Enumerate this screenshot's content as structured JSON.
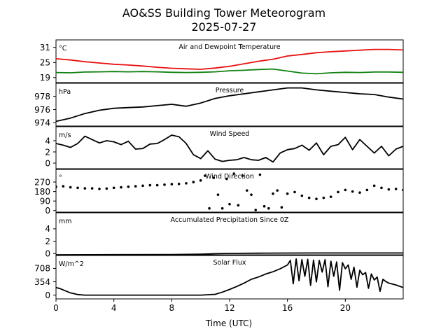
{
  "figure": {
    "title_line1": "AO&SS Building Tower Meteorogram",
    "title_line2": "2025-07-27",
    "xlabel": "Time (UTC)",
    "xlim": [
      0,
      24
    ],
    "xticks": [
      0,
      4,
      8,
      12,
      16,
      20
    ],
    "xtick_labels": [
      "0",
      "4",
      "8",
      "12",
      "16",
      "20"
    ]
  },
  "chart_data": [
    {
      "type": "line",
      "title": "Air and Dewpoint Temperature",
      "unit": "°C",
      "ylim": [
        17,
        34
      ],
      "yticks": [
        19,
        25,
        31
      ],
      "ytick_labels": [
        "19",
        "25",
        "31"
      ],
      "series": [
        {
          "name": "Air Temperature",
          "color": "#e81010",
          "x": [
            0,
            1,
            2,
            3,
            4,
            5,
            6,
            7,
            8,
            9,
            10,
            11,
            12,
            13,
            14,
            15,
            16,
            17,
            18,
            19,
            20,
            21,
            22,
            23,
            24
          ],
          "y": [
            26.5,
            26.0,
            25.3,
            24.8,
            24.3,
            24.0,
            23.6,
            23.1,
            22.7,
            22.5,
            22.3,
            22.8,
            23.5,
            24.5,
            25.5,
            26.3,
            27.6,
            28.2,
            28.9,
            29.3,
            29.6,
            29.9,
            30.2,
            30.2,
            30.0
          ]
        },
        {
          "name": "Dewpoint",
          "color": "#108010",
          "x": [
            0,
            1,
            2,
            3,
            4,
            5,
            6,
            7,
            8,
            9,
            10,
            11,
            12,
            13,
            14,
            15,
            16,
            17,
            18,
            19,
            20,
            21,
            22,
            23,
            24
          ],
          "y": [
            21.0,
            20.9,
            21.2,
            21.3,
            21.4,
            21.3,
            21.4,
            21.3,
            21.1,
            21.0,
            21.1,
            21.3,
            21.7,
            21.9,
            22.2,
            22.4,
            21.6,
            20.8,
            20.5,
            20.9,
            21.1,
            21.0,
            21.2,
            21.2,
            21.1
          ]
        }
      ]
    },
    {
      "type": "line",
      "title": "Pressure",
      "unit": "hPa",
      "ylim": [
        973.5,
        980.0
      ],
      "yticks": [
        974,
        976,
        978
      ],
      "ytick_labels": [
        "974",
        "976",
        "978"
      ],
      "series": [
        {
          "name": "Pressure",
          "color": "#000000",
          "x": [
            0,
            1,
            2,
            3,
            4,
            5,
            6,
            7,
            8,
            9,
            10,
            11,
            12,
            13,
            14,
            15,
            16,
            17,
            18,
            19,
            20,
            21,
            22,
            23,
            24
          ],
          "y": [
            974.2,
            974.7,
            975.4,
            975.9,
            976.2,
            976.3,
            976.4,
            976.6,
            976.8,
            976.5,
            977.0,
            977.7,
            978.1,
            978.4,
            978.7,
            979.0,
            979.3,
            979.3,
            979.0,
            978.8,
            978.6,
            978.4,
            978.3,
            977.9,
            977.6
          ]
        }
      ]
    },
    {
      "type": "line",
      "title": "Wind Speed",
      "unit": "m/s",
      "ylim": [
        -1,
        6.5
      ],
      "yticks": [
        0,
        2,
        4
      ],
      "ytick_labels": [
        "0",
        "2",
        "4"
      ],
      "series": [
        {
          "name": "Wind Speed",
          "color": "#000000",
          "x": [
            0,
            0.5,
            1,
            1.5,
            2,
            2.5,
            3,
            3.5,
            4,
            4.5,
            5,
            5.5,
            6,
            6.5,
            7,
            7.5,
            8,
            8.5,
            9,
            9.5,
            10,
            10.5,
            11,
            11.5,
            12,
            12.5,
            13,
            13.5,
            14,
            14.5,
            15,
            15.5,
            16,
            16.5,
            17,
            17.5,
            18,
            18.5,
            19,
            19.5,
            20,
            20.5,
            21,
            21.5,
            22,
            22.5,
            23,
            23.5,
            24
          ],
          "y": [
            3.5,
            3.2,
            2.8,
            3.5,
            4.8,
            4.2,
            3.6,
            4.0,
            3.8,
            3.3,
            3.9,
            2.5,
            2.6,
            3.4,
            3.5,
            4.2,
            5.0,
            4.7,
            3.5,
            1.5,
            0.8,
            2.2,
            0.7,
            0.3,
            0.5,
            0.6,
            1.0,
            0.6,
            0.5,
            1.0,
            0.2,
            1.8,
            2.4,
            2.6,
            3.2,
            2.3,
            3.6,
            1.5,
            3.0,
            3.3,
            4.6,
            2.4,
            4.2,
            3.0,
            1.8,
            3.0,
            1.3,
            2.5,
            3.0
          ]
        }
      ]
    },
    {
      "type": "scatter",
      "title": "Wind Direction",
      "unit": "°",
      "ylim": [
        -15,
        390
      ],
      "yticks": [
        0,
        90,
        180,
        270
      ],
      "ytick_labels": [
        "0",
        "90",
        "180",
        "270"
      ],
      "series": [
        {
          "name": "Wind Direction",
          "color": "#000000",
          "x": [
            0,
            0.5,
            1,
            1.5,
            2,
            2.5,
            3,
            3.5,
            4,
            4.5,
            5,
            5.5,
            6,
            6.5,
            7,
            7.5,
            8,
            8.5,
            9,
            9.5,
            10,
            10.3,
            10.6,
            10.9,
            11.2,
            11.5,
            11.8,
            12.0,
            12.3,
            12.6,
            12.9,
            13.2,
            13.5,
            13.8,
            14.1,
            14.4,
            14.7,
            15.0,
            15.3,
            15.6,
            16.0,
            16.5,
            17,
            17.5,
            18,
            18.5,
            19,
            19.5,
            20,
            20.5,
            21,
            21.5,
            22,
            22.5,
            23,
            23.5,
            24
          ],
          "y": [
            225,
            230,
            220,
            215,
            210,
            210,
            205,
            208,
            215,
            220,
            225,
            230,
            235,
            240,
            240,
            245,
            250,
            252,
            258,
            270,
            285,
            330,
            20,
            310,
            150,
            20,
            300,
            60,
            350,
            50,
            330,
            190,
            150,
            5,
            340,
            40,
            20,
            160,
            190,
            30,
            160,
            175,
            140,
            120,
            110,
            120,
            130,
            175,
            195,
            180,
            170,
            195,
            235,
            215,
            200,
            205,
            195
          ]
        }
      ]
    },
    {
      "type": "line",
      "title": "Accumulated Precipitation Since 0Z",
      "unit": "mm",
      "ylim": [
        -0.2,
        6.6
      ],
      "yticks": [
        0,
        2,
        4
      ],
      "ytick_labels": [
        "0",
        "2",
        "4"
      ],
      "series": [
        {
          "name": "Accumulated Precipitation",
          "color": "#000000",
          "x": [
            0,
            4,
            8,
            10,
            11,
            12,
            14,
            16,
            18,
            20,
            22,
            24
          ],
          "y": [
            -0.2,
            -0.18,
            -0.16,
            -0.1,
            -0.02,
            0.03,
            0.06,
            0.08,
            0.1,
            0.1,
            0.1,
            0.1
          ]
        }
      ]
    },
    {
      "type": "line",
      "title": "Solar Flux",
      "unit": "W/m^2",
      "ylim": [
        -100,
        1050
      ],
      "yticks": [
        0,
        354,
        708
      ],
      "ytick_labels": [
        "0",
        "354",
        "708"
      ],
      "series": [
        {
          "name": "Solar Flux",
          "color": "#000000",
          "x": [
            0,
            0.3,
            0.6,
            1.0,
            1.5,
            2,
            3,
            4,
            5,
            6,
            7,
            8,
            9,
            10,
            11,
            11.5,
            12,
            12.5,
            13,
            13.5,
            14,
            14.5,
            15,
            15.5,
            16,
            16.2,
            16.4,
            16.6,
            16.8,
            17,
            17.2,
            17.4,
            17.6,
            17.8,
            18,
            18.2,
            18.4,
            18.6,
            18.8,
            19,
            19.2,
            19.4,
            19.6,
            19.8,
            20,
            20.2,
            20.4,
            20.6,
            20.8,
            21,
            21.2,
            21.4,
            21.6,
            21.8,
            22,
            22.2,
            22.4,
            22.6,
            22.8,
            23,
            23.5,
            24
          ],
          "y": [
            200,
            170,
            120,
            60,
            15,
            0,
            0,
            0,
            0,
            0,
            0,
            0,
            0,
            0,
            20,
            80,
            150,
            230,
            320,
            420,
            480,
            560,
            620,
            700,
            800,
            920,
            300,
            960,
            380,
            940,
            500,
            950,
            260,
            930,
            350,
            920,
            610,
            940,
            220,
            900,
            500,
            880,
            130,
            860,
            700,
            800,
            420,
            740,
            210,
            660,
            540,
            600,
            180,
            560,
            400,
            480,
            100,
            420,
            360,
            320,
            270,
            200
          ]
        }
      ]
    }
  ]
}
